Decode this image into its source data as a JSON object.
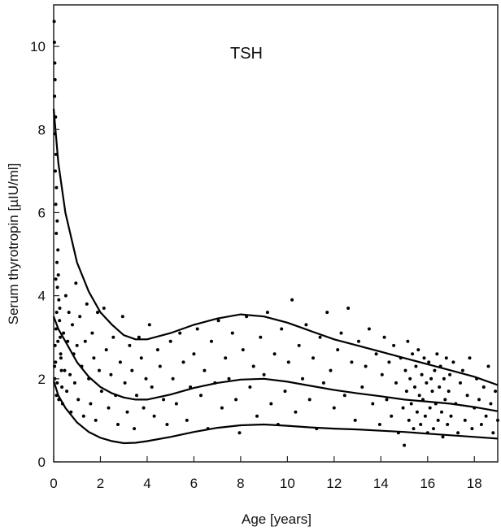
{
  "chart_data": {
    "type": "scatter",
    "title": "TSH",
    "xlabel": "Age [years]",
    "ylabel": "Serum thyrotropin [µIU/ml]",
    "xlim": [
      0,
      19
    ],
    "ylim": [
      0,
      11
    ],
    "xticks": [
      0,
      2,
      4,
      6,
      8,
      10,
      12,
      14,
      16,
      18
    ],
    "yticks": [
      0,
      2,
      4,
      6,
      8,
      10
    ],
    "grid": false,
    "legend": "none",
    "colors": {
      "points": "#000000",
      "curves": "#000000",
      "axes": "#222222"
    },
    "curves": [
      {
        "x": [
          0,
          0.2,
          0.5,
          1,
          1.5,
          2,
          2.5,
          3,
          3.5,
          4,
          5,
          6,
          7,
          8,
          9,
          10,
          11,
          12,
          13,
          14,
          15,
          16,
          17,
          18,
          19
        ],
        "y": [
          8.5,
          7.2,
          6.0,
          4.8,
          4.1,
          3.6,
          3.3,
          3.05,
          2.95,
          2.95,
          3.1,
          3.3,
          3.45,
          3.55,
          3.5,
          3.35,
          3.15,
          2.95,
          2.8,
          2.65,
          2.5,
          2.35,
          2.2,
          2.05,
          1.85
        ]
      },
      {
        "x": [
          0,
          0.2,
          0.5,
          1,
          1.5,
          2,
          2.5,
          3,
          3.5,
          4,
          5,
          6,
          7,
          8,
          9,
          10,
          11,
          12,
          13,
          14,
          15,
          16,
          17,
          18,
          19
        ],
        "y": [
          3.5,
          3.2,
          2.9,
          2.4,
          2.05,
          1.8,
          1.65,
          1.55,
          1.5,
          1.5,
          1.62,
          1.78,
          1.9,
          1.98,
          2.0,
          1.93,
          1.83,
          1.73,
          1.65,
          1.58,
          1.5,
          1.45,
          1.4,
          1.32,
          1.22
        ]
      },
      {
        "x": [
          0,
          0.2,
          0.5,
          1,
          1.5,
          2,
          2.5,
          3,
          3.5,
          4,
          5,
          6,
          7,
          8,
          9,
          10,
          11,
          12,
          13,
          14,
          15,
          16,
          17,
          18,
          19
        ],
        "y": [
          1.95,
          1.6,
          1.3,
          0.95,
          0.72,
          0.58,
          0.5,
          0.45,
          0.46,
          0.5,
          0.6,
          0.72,
          0.82,
          0.88,
          0.9,
          0.87,
          0.83,
          0.8,
          0.78,
          0.75,
          0.72,
          0.68,
          0.64,
          0.6,
          0.56
        ]
      }
    ],
    "points": [
      [
        0.02,
        10.6
      ],
      [
        0.03,
        10.1
      ],
      [
        0.05,
        9.6
      ],
      [
        0.06,
        9.2
      ],
      [
        0.04,
        8.8
      ],
      [
        0.08,
        8.3
      ],
      [
        0.05,
        7.9
      ],
      [
        0.1,
        7.4
      ],
      [
        0.07,
        7.0
      ],
      [
        0.12,
        6.6
      ],
      [
        0.09,
        6.2
      ],
      [
        0.15,
        5.8
      ],
      [
        0.11,
        5.5
      ],
      [
        0.18,
        5.1
      ],
      [
        0.14,
        4.8
      ],
      [
        0.2,
        4.5
      ],
      [
        0.16,
        4.2
      ],
      [
        0.22,
        3.9
      ],
      [
        0.13,
        3.6
      ],
      [
        0.25,
        3.4
      ],
      [
        0.1,
        3.2
      ],
      [
        0.28,
        3.0
      ],
      [
        0.06,
        2.8
      ],
      [
        0.3,
        2.6
      ],
      [
        0.08,
        2.4
      ],
      [
        0.33,
        2.2
      ],
      [
        0.05,
        2.0
      ],
      [
        0.35,
        1.8
      ],
      [
        0.12,
        1.6
      ],
      [
        0.38,
        1.4
      ],
      [
        0.04,
        2.3
      ],
      [
        0.18,
        2.9
      ],
      [
        0.26,
        3.7
      ],
      [
        0.09,
        4.4
      ],
      [
        0.22,
        1.5
      ],
      [
        0.31,
        2.5
      ],
      [
        0.15,
        1.9
      ],
      [
        0.42,
        3.1
      ],
      [
        0.47,
        2.2
      ],
      [
        0.52,
        4.0
      ],
      [
        0.56,
        1.7
      ],
      [
        0.6,
        2.9
      ],
      [
        0.65,
        3.6
      ],
      [
        0.7,
        2.1
      ],
      [
        0.74,
        1.2
      ],
      [
        0.8,
        3.3
      ],
      [
        0.86,
        2.6
      ],
      [
        0.9,
        1.9
      ],
      [
        0.95,
        4.3
      ],
      [
        1.0,
        2.8
      ],
      [
        1.05,
        1.5
      ],
      [
        1.12,
        3.5
      ],
      [
        1.2,
        2.3
      ],
      [
        1.28,
        1.1
      ],
      [
        1.35,
        2.9
      ],
      [
        1.42,
        3.8
      ],
      [
        1.5,
        2.0
      ],
      [
        1.58,
        1.4
      ],
      [
        1.65,
        3.1
      ],
      [
        1.72,
        2.5
      ],
      [
        1.8,
        1.0
      ],
      [
        1.88,
        3.6
      ],
      [
        1.95,
        2.2
      ],
      [
        2.05,
        1.7
      ],
      [
        2.15,
        3.7
      ],
      [
        2.25,
        2.7
      ],
      [
        2.35,
        1.3
      ],
      [
        2.45,
        2.1
      ],
      [
        2.55,
        3.0
      ],
      [
        2.65,
        1.6
      ],
      [
        2.75,
        0.9
      ],
      [
        2.85,
        2.4
      ],
      [
        2.95,
        3.5
      ],
      [
        3.05,
        1.9
      ],
      [
        3.15,
        1.2
      ],
      [
        3.25,
        2.8
      ],
      [
        3.35,
        2.2
      ],
      [
        3.45,
        0.8
      ],
      [
        3.55,
        1.6
      ],
      [
        3.65,
        3.0
      ],
      [
        3.75,
        2.5
      ],
      [
        3.85,
        1.3
      ],
      [
        3.95,
        2.0
      ],
      [
        4.1,
        3.3
      ],
      [
        4.2,
        1.8
      ],
      [
        4.3,
        1.1
      ],
      [
        4.45,
        2.7
      ],
      [
        4.55,
        2.3
      ],
      [
        4.7,
        1.5
      ],
      [
        4.85,
        0.9
      ],
      [
        5.0,
        2.9
      ],
      [
        5.1,
        2.0
      ],
      [
        5.25,
        1.4
      ],
      [
        5.4,
        3.1
      ],
      [
        5.55,
        2.4
      ],
      [
        5.7,
        1.0
      ],
      [
        5.85,
        1.8
      ],
      [
        6.0,
        2.6
      ],
      [
        6.15,
        3.2
      ],
      [
        6.3,
        1.6
      ],
      [
        6.45,
        2.2
      ],
      [
        6.6,
        0.8
      ],
      [
        6.75,
        2.9
      ],
      [
        6.9,
        1.9
      ],
      [
        7.05,
        3.4
      ],
      [
        7.2,
        1.3
      ],
      [
        7.35,
        2.5
      ],
      [
        7.5,
        2.0
      ],
      [
        7.65,
        3.1
      ],
      [
        7.8,
        1.5
      ],
      [
        7.95,
        0.7
      ],
      [
        8.1,
        2.7
      ],
      [
        8.25,
        3.5
      ],
      [
        8.4,
        1.8
      ],
      [
        8.55,
        2.3
      ],
      [
        8.7,
        1.1
      ],
      [
        8.85,
        3.0
      ],
      [
        9.0,
        2.1
      ],
      [
        9.15,
        3.6
      ],
      [
        9.3,
        1.4
      ],
      [
        9.45,
        2.6
      ],
      [
        9.6,
        0.9
      ],
      [
        9.75,
        3.2
      ],
      [
        9.9,
        1.7
      ],
      [
        10.05,
        2.4
      ],
      [
        10.2,
        3.9
      ],
      [
        10.35,
        1.2
      ],
      [
        10.5,
        2.8
      ],
      [
        10.65,
        2.0
      ],
      [
        10.8,
        3.3
      ],
      [
        10.95,
        1.5
      ],
      [
        11.1,
        2.5
      ],
      [
        11.25,
        0.8
      ],
      [
        11.4,
        3.0
      ],
      [
        11.55,
        1.9
      ],
      [
        11.7,
        3.6
      ],
      [
        11.85,
        2.2
      ],
      [
        12.0,
        1.3
      ],
      [
        12.15,
        2.7
      ],
      [
        12.3,
        3.1
      ],
      [
        12.45,
        1.6
      ],
      [
        12.6,
        3.7
      ],
      [
        12.75,
        2.4
      ],
      [
        12.9,
        1.0
      ],
      [
        13.05,
        2.9
      ],
      [
        13.2,
        1.8
      ],
      [
        13.35,
        2.3
      ],
      [
        13.5,
        3.2
      ],
      [
        13.65,
        1.4
      ],
      [
        13.8,
        2.6
      ],
      [
        13.95,
        0.9
      ],
      [
        14.05,
        2.1
      ],
      [
        14.15,
        3.0
      ],
      [
        14.25,
        1.5
      ],
      [
        14.35,
        2.4
      ],
      [
        14.45,
        1.1
      ],
      [
        14.55,
        2.8
      ],
      [
        14.65,
        1.9
      ],
      [
        14.75,
        0.7
      ],
      [
        14.85,
        2.5
      ],
      [
        14.95,
        1.3
      ],
      [
        15.0,
        0.4
      ],
      [
        15.05,
        2.2
      ],
      [
        15.1,
        1.7
      ],
      [
        15.15,
        2.9
      ],
      [
        15.2,
        1.0
      ],
      [
        15.25,
        2.0
      ],
      [
        15.3,
        1.4
      ],
      [
        15.35,
        2.6
      ],
      [
        15.4,
        0.8
      ],
      [
        15.45,
        1.8
      ],
      [
        15.5,
        2.3
      ],
      [
        15.55,
        1.2
      ],
      [
        15.6,
        2.7
      ],
      [
        15.65,
        1.6
      ],
      [
        15.7,
        0.9
      ],
      [
        15.75,
        2.1
      ],
      [
        15.8,
        1.5
      ],
      [
        15.85,
        2.5
      ],
      [
        15.9,
        1.1
      ],
      [
        15.95,
        1.9
      ],
      [
        16.0,
        0.7
      ],
      [
        16.05,
        2.4
      ],
      [
        16.1,
        1.3
      ],
      [
        16.15,
        2.0
      ],
      [
        16.2,
        1.7
      ],
      [
        16.25,
        0.8
      ],
      [
        16.3,
        2.2
      ],
      [
        16.35,
        1.4
      ],
      [
        16.4,
        2.6
      ],
      [
        16.45,
        1.0
      ],
      [
        16.5,
        1.8
      ],
      [
        16.55,
        2.3
      ],
      [
        16.6,
        1.2
      ],
      [
        16.65,
        0.6
      ],
      [
        16.7,
        2.0
      ],
      [
        16.75,
        1.5
      ],
      [
        16.8,
        2.5
      ],
      [
        16.85,
        0.9
      ],
      [
        16.9,
        1.7
      ],
      [
        16.95,
        2.1
      ],
      [
        17.0,
        1.1
      ],
      [
        17.1,
        2.4
      ],
      [
        17.2,
        1.4
      ],
      [
        17.3,
        0.7
      ],
      [
        17.4,
        1.9
      ],
      [
        17.5,
        2.2
      ],
      [
        17.6,
        1.0
      ],
      [
        17.7,
        1.6
      ],
      [
        17.8,
        2.5
      ],
      [
        17.9,
        0.8
      ],
      [
        18.0,
        1.3
      ],
      [
        18.1,
        2.0
      ],
      [
        18.2,
        1.5
      ],
      [
        18.3,
        0.9
      ],
      [
        18.4,
        1.8
      ],
      [
        18.5,
        1.1
      ],
      [
        18.6,
        2.3
      ],
      [
        18.7,
        1.4
      ],
      [
        18.8,
        0.7
      ],
      [
        18.9,
        1.7
      ],
      [
        19.0,
        1.0
      ]
    ]
  }
}
